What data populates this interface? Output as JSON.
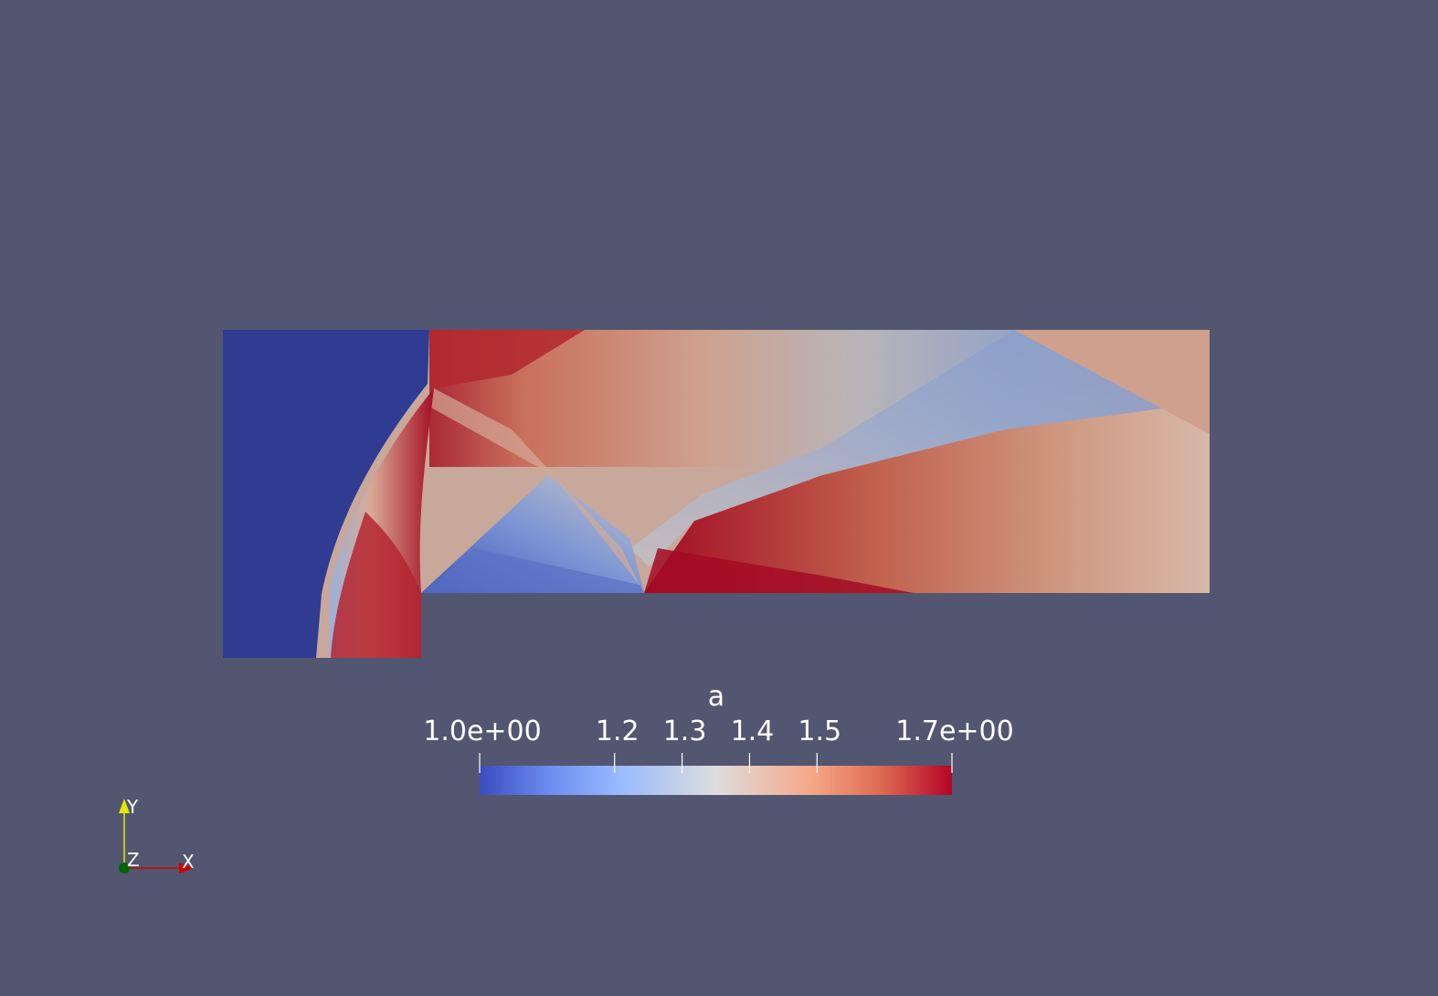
{
  "scalar_bar": {
    "title": "a",
    "range": [
      1.0,
      1.7
    ],
    "tick_labels": [
      {
        "text": "1.0e+00",
        "value": 1.0
      },
      {
        "text": "1.2",
        "value": 1.2
      },
      {
        "text": "1.3",
        "value": 1.3
      },
      {
        "text": "1.4",
        "value": 1.4
      },
      {
        "text": "1.5",
        "value": 1.5
      },
      {
        "text": "1.7e+00",
        "value": 1.7
      }
    ],
    "colormap": "cool-to-warm",
    "color_low": "#3b4cc0",
    "color_mid": "#dddddd",
    "color_high": "#b40426"
  },
  "axes": {
    "x_label": "X",
    "y_label": "Y",
    "z_label": "Z",
    "x_color": "#cc0000",
    "y_color": "#e6e600",
    "z_color": "#006400"
  },
  "colors": {
    "background": "#525670",
    "low_region": "#2f3c92",
    "peak": "#a30a24"
  }
}
